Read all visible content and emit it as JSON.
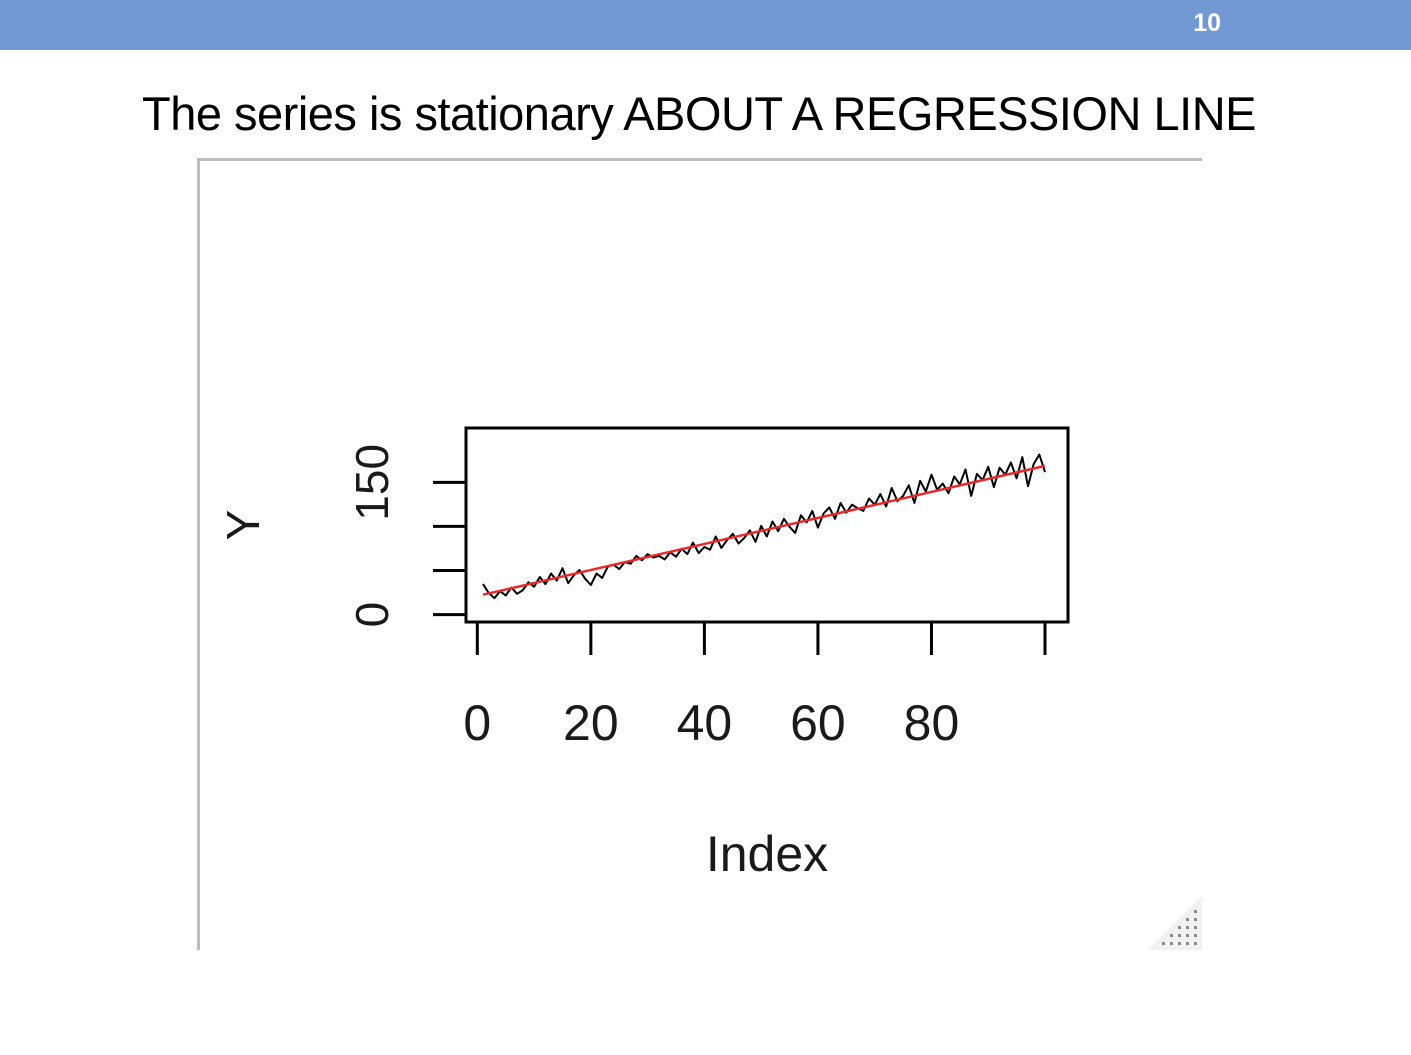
{
  "slide": {
    "number": "10",
    "title": "The series is stationary ABOUT A REGRESSION LINE"
  },
  "colors": {
    "header_bar": "#7399d4",
    "series_line": "#000000",
    "regression_line": "#e8282b"
  },
  "chart_data": {
    "type": "line",
    "xlabel": "Index",
    "ylabel": "Y",
    "xlim": [
      1,
      100
    ],
    "ylim": [
      -5,
      215
    ],
    "x_ticks": [
      0,
      20,
      40,
      60,
      80,
      100
    ],
    "x_tick_labels": [
      "0",
      "20",
      "40",
      "60",
      "80",
      ""
    ],
    "y_ticks": [
      0,
      50,
      100,
      150
    ],
    "y_tick_labels": [
      "0",
      "",
      "",
      "150"
    ],
    "series": [
      {
        "type": "line",
        "color": "#000000",
        "x": [
          1,
          2,
          3,
          4,
          5,
          6,
          7,
          8,
          9,
          10,
          11,
          12,
          13,
          14,
          15,
          16,
          17,
          18,
          19,
          20,
          21,
          22,
          23,
          24,
          25,
          26,
          27,
          28,
          29,
          30,
          31,
          32,
          33,
          34,
          35,
          36,
          37,
          38,
          39,
          40,
          41,
          42,
          43,
          44,
          45,
          46,
          47,
          48,
          49,
          50,
          51,
          52,
          53,
          54,
          55,
          56,
          57,
          58,
          59,
          60,
          61,
          62,
          63,
          64,
          65,
          66,
          67,
          68,
          69,
          70,
          71,
          72,
          73,
          74,
          75,
          76,
          77,
          78,
          79,
          80,
          81,
          82,
          83,
          84,
          85,
          86,
          87,
          88,
          89,
          90,
          91,
          92,
          93,
          94,
          95,
          96,
          97,
          98,
          99,
          100
        ],
        "y": [
          38,
          28,
          22,
          30,
          25,
          34,
          27,
          31,
          40,
          35,
          46,
          38,
          50,
          42,
          56,
          39,
          48,
          54,
          44,
          37,
          50,
          45,
          58,
          60,
          55,
          63,
          61,
          70,
          65,
          72,
          68,
          70,
          66,
          74,
          69,
          78,
          72,
          85,
          73,
          80,
          77,
          92,
          79,
          88,
          95,
          84,
          90,
          99,
          86,
          104,
          92,
          109,
          98,
          112,
          103,
          96,
          116,
          108,
          121,
          102,
          118,
          125,
          112,
          130,
          119,
          128,
          124,
          121,
          135,
          128,
          140,
          126,
          147,
          132,
          138,
          150,
          130,
          155,
          143,
          162,
          145,
          152,
          141,
          160,
          151,
          168,
          138,
          163,
          156,
          171,
          148,
          170,
          162,
          176,
          158,
          182,
          149,
          174,
          185,
          165
        ]
      },
      {
        "type": "line",
        "color": "#e8282b",
        "x": [
          1,
          100
        ],
        "y": [
          26,
          172
        ]
      }
    ]
  }
}
